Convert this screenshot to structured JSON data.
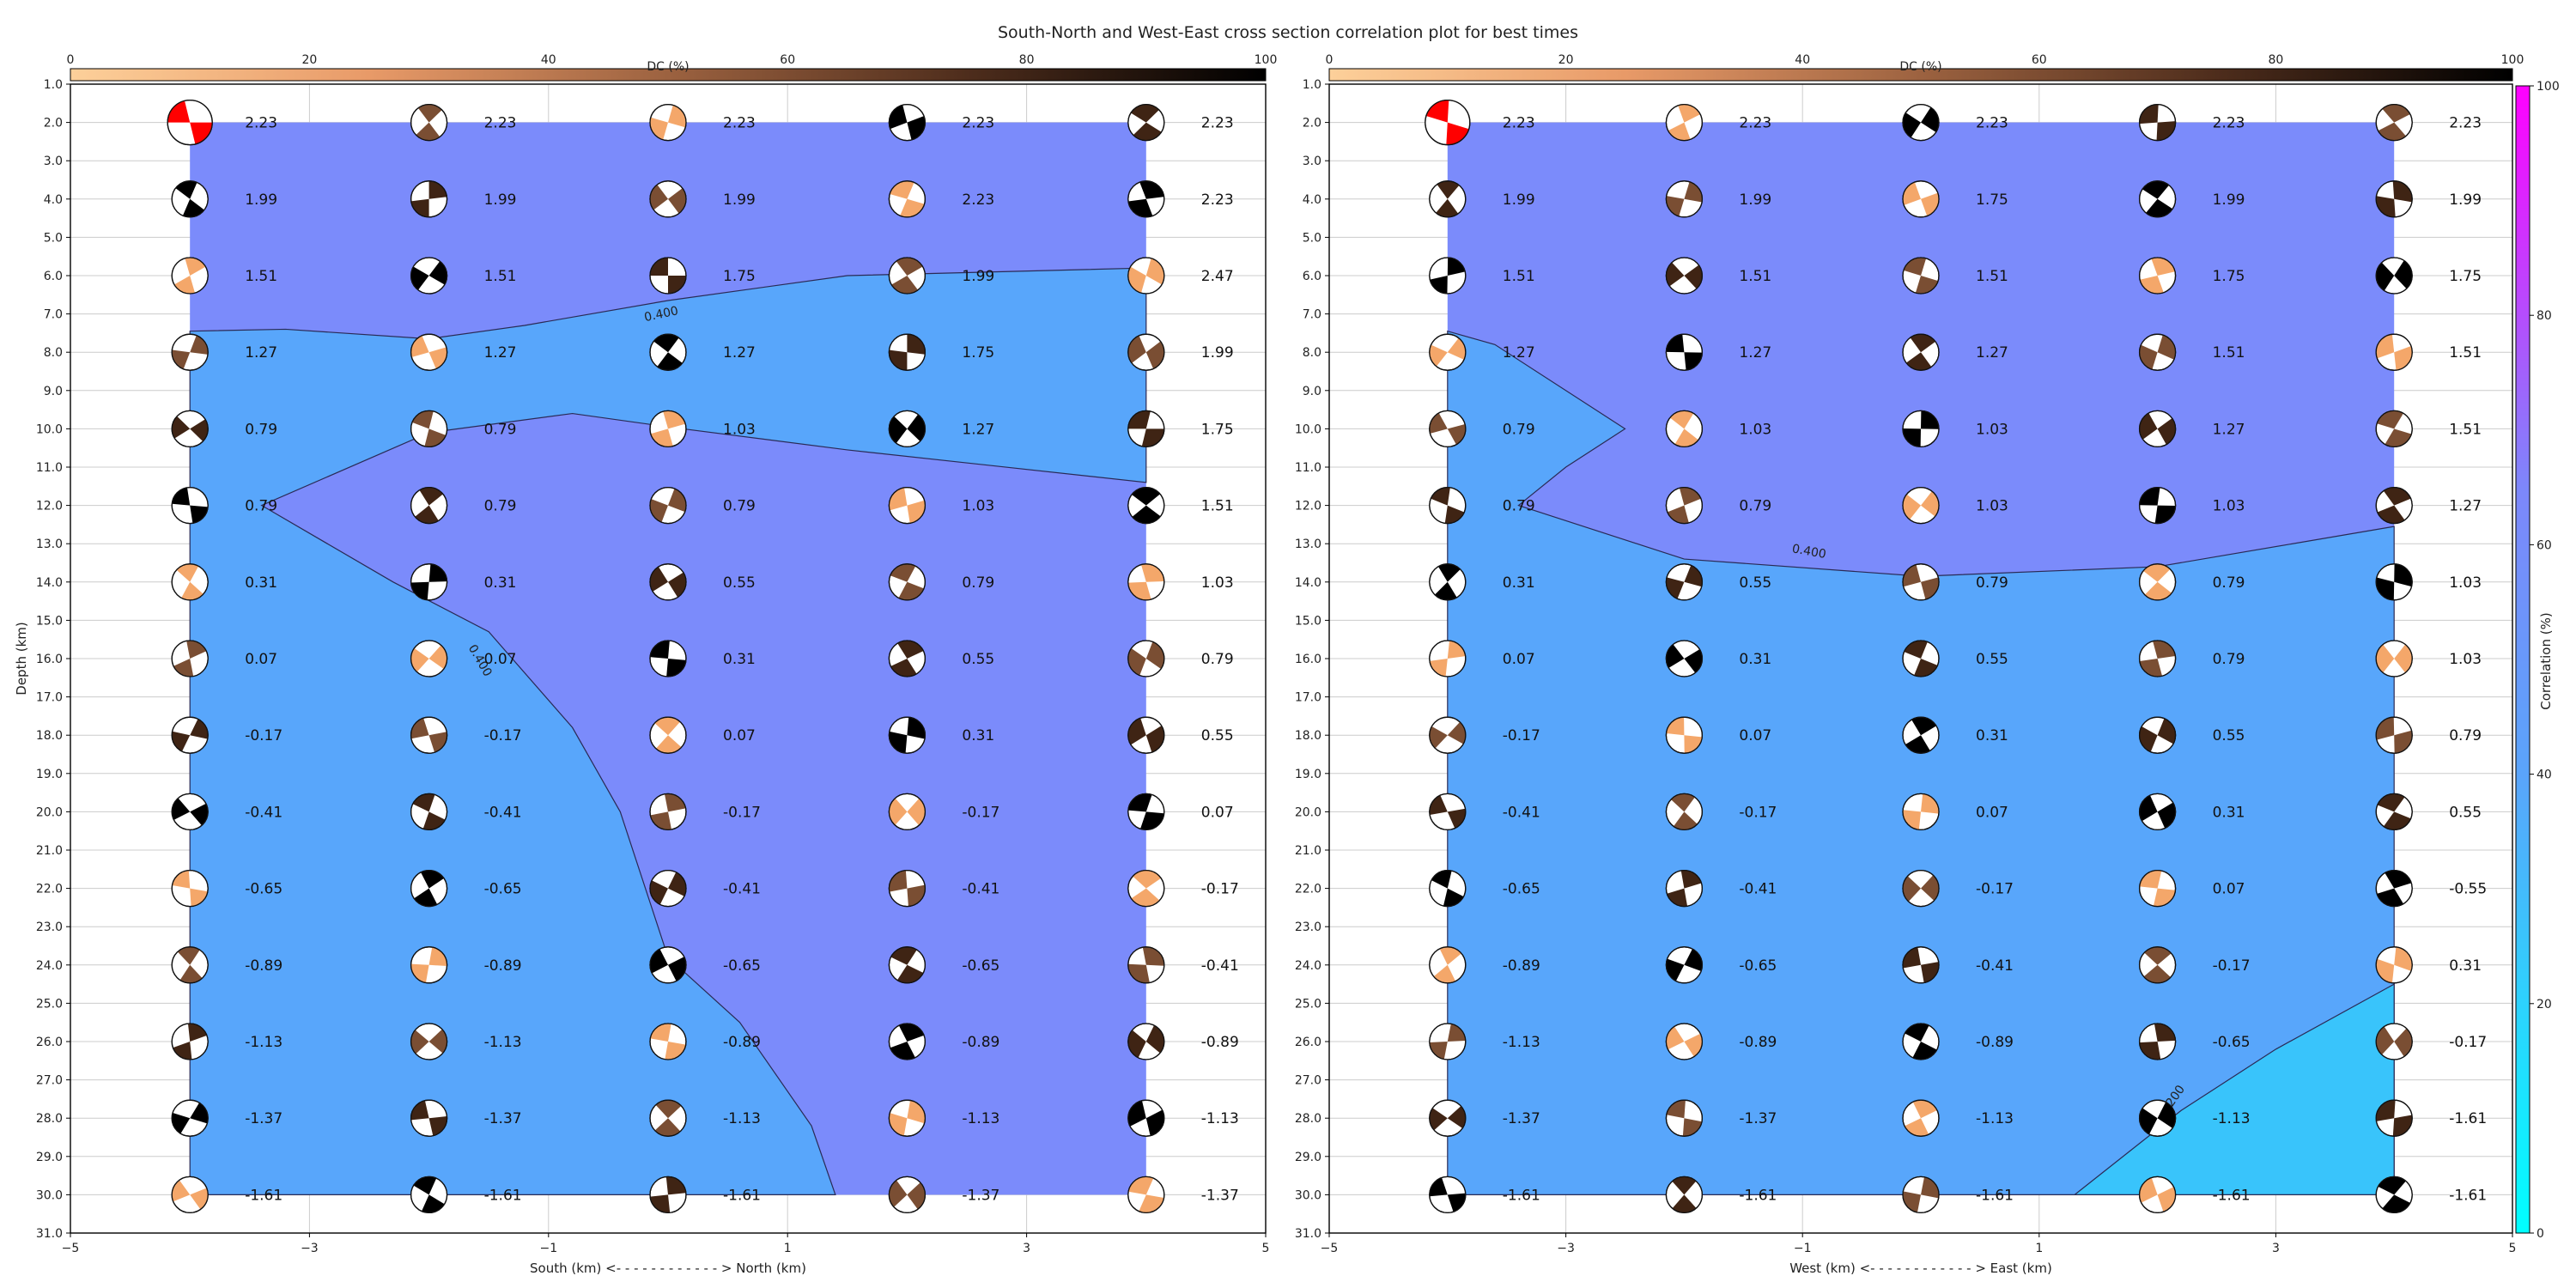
{
  "title": "South-North and West-East cross section correlation plot for best times",
  "colors": {
    "region_high": "#7B8BFB",
    "region_mid": "#58A6FB",
    "region_low": "#39C4FB",
    "contour": "#2a2a55",
    "grid": "#cccccc",
    "beach_dark": "#3f2414",
    "beach_mid": "#7a4e33",
    "beach_light": "#f4a76a",
    "beach_red": "#ff0000"
  },
  "dc_colorbar": {
    "label": "DC (%)",
    "ticks": [
      "0",
      "20",
      "40",
      "60",
      "80",
      "100"
    ]
  },
  "correlation_colorbar": {
    "label": "Correlation (%)",
    "ticks": [
      "0",
      "20",
      "40",
      "60",
      "80",
      "100"
    ]
  },
  "y_ticks": [
    "1.0",
    "2.0",
    "3.0",
    "4.0",
    "5.0",
    "6.0",
    "7.0",
    "8.0",
    "9.0",
    "10.0",
    "11.0",
    "12.0",
    "13.0",
    "14.0",
    "15.0",
    "16.0",
    "17.0",
    "18.0",
    "19.0",
    "20.0",
    "21.0",
    "22.0",
    "23.0",
    "24.0",
    "25.0",
    "26.0",
    "27.0",
    "28.0",
    "29.0",
    "30.0",
    "31.0"
  ],
  "x_ticks": [
    "−5",
    "−3",
    "−1",
    "1",
    "3",
    "5"
  ],
  "ylabel": "Depth (km)",
  "chart_data": [
    {
      "type": "heatmap",
      "xlabel": "South (km) <- - - - - - - - - - - - > North (km)",
      "ylabel": "Depth (km)",
      "xlim": [
        -5,
        5
      ],
      "ylim": [
        31,
        1
      ],
      "x": [
        -4,
        -2,
        0,
        2,
        4
      ],
      "depths": [
        2,
        4,
        6,
        8,
        10,
        12,
        14,
        16,
        18,
        20,
        22,
        24,
        26,
        28,
        30
      ],
      "contour_label": "0.400",
      "contour_label_2": "0.400",
      "values": [
        [
          "2.23",
          "2.23",
          "2.23",
          "2.23",
          "2.23"
        ],
        [
          "1.99",
          "1.99",
          "1.99",
          "2.23",
          "2.23"
        ],
        [
          "1.51",
          "1.51",
          "1.75",
          "1.99",
          "2.47"
        ],
        [
          "1.27",
          "1.27",
          "1.27",
          "1.75",
          "1.99"
        ],
        [
          "0.79",
          "0.79",
          "1.03",
          "1.27",
          "1.75"
        ],
        [
          "0.79",
          "0.79",
          "0.79",
          "1.03",
          "1.51"
        ],
        [
          "0.31",
          "0.31",
          "0.55",
          "0.79",
          "1.03"
        ],
        [
          "0.07",
          "0.07",
          "0.31",
          "0.55",
          "0.79"
        ],
        [
          "-0.17",
          "-0.17",
          "0.07",
          "0.31",
          "0.55"
        ],
        [
          "-0.41",
          "-0.41",
          "-0.17",
          "-0.17",
          "0.07"
        ],
        [
          "-0.65",
          "-0.65",
          "-0.41",
          "-0.41",
          "-0.17"
        ],
        [
          "-0.89",
          "-0.89",
          "-0.65",
          "-0.65",
          "-0.41"
        ],
        [
          "-1.13",
          "-1.13",
          "-0.89",
          "-0.89",
          "-0.89"
        ],
        [
          "-1.37",
          "-1.37",
          "-1.13",
          "-1.13",
          "-1.13"
        ],
        [
          "-1.61",
          "-1.61",
          "-1.61",
          "-1.37",
          "-1.37"
        ]
      ]
    },
    {
      "type": "heatmap",
      "xlabel": "West (km) <- - - - - - - - - - - - > East (km)",
      "ylabel": "Depth (km)",
      "xlim": [
        -5,
        5
      ],
      "ylim": [
        31,
        1
      ],
      "x": [
        -4,
        -2,
        0,
        2,
        4
      ],
      "depths": [
        2,
        4,
        6,
        8,
        10,
        12,
        14,
        16,
        18,
        20,
        22,
        24,
        26,
        28,
        30
      ],
      "contour_label": "0.400",
      "contour_label_2": "0.200",
      "values": [
        [
          "2.23",
          "2.23",
          "2.23",
          "2.23",
          "2.23"
        ],
        [
          "1.99",
          "1.99",
          "1.75",
          "1.99",
          "1.99"
        ],
        [
          "1.51",
          "1.51",
          "1.51",
          "1.75",
          "1.75"
        ],
        [
          "1.27",
          "1.27",
          "1.27",
          "1.51",
          "1.51"
        ],
        [
          "0.79",
          "1.03",
          "1.03",
          "1.27",
          "1.51"
        ],
        [
          "0.79",
          "0.79",
          "1.03",
          "1.03",
          "1.27"
        ],
        [
          "0.31",
          "0.55",
          "0.79",
          "0.79",
          "1.03"
        ],
        [
          "0.07",
          "0.31",
          "0.55",
          "0.79",
          "1.03"
        ],
        [
          "-0.17",
          "0.07",
          "0.31",
          "0.55",
          "0.79"
        ],
        [
          "-0.41",
          "-0.17",
          "0.07",
          "0.31",
          "0.55"
        ],
        [
          "-0.65",
          "-0.41",
          "-0.17",
          "0.07",
          "-0.55"
        ],
        [
          "-0.89",
          "-0.65",
          "-0.41",
          "-0.17",
          "0.31"
        ],
        [
          "-1.13",
          "-0.89",
          "-0.89",
          "-0.65",
          "-0.17"
        ],
        [
          "-1.37",
          "-1.37",
          "-1.13",
          "-1.13",
          "-1.61"
        ],
        [
          "-1.61",
          "-1.61",
          "-1.61",
          "-1.61",
          "-1.61"
        ]
      ]
    }
  ]
}
